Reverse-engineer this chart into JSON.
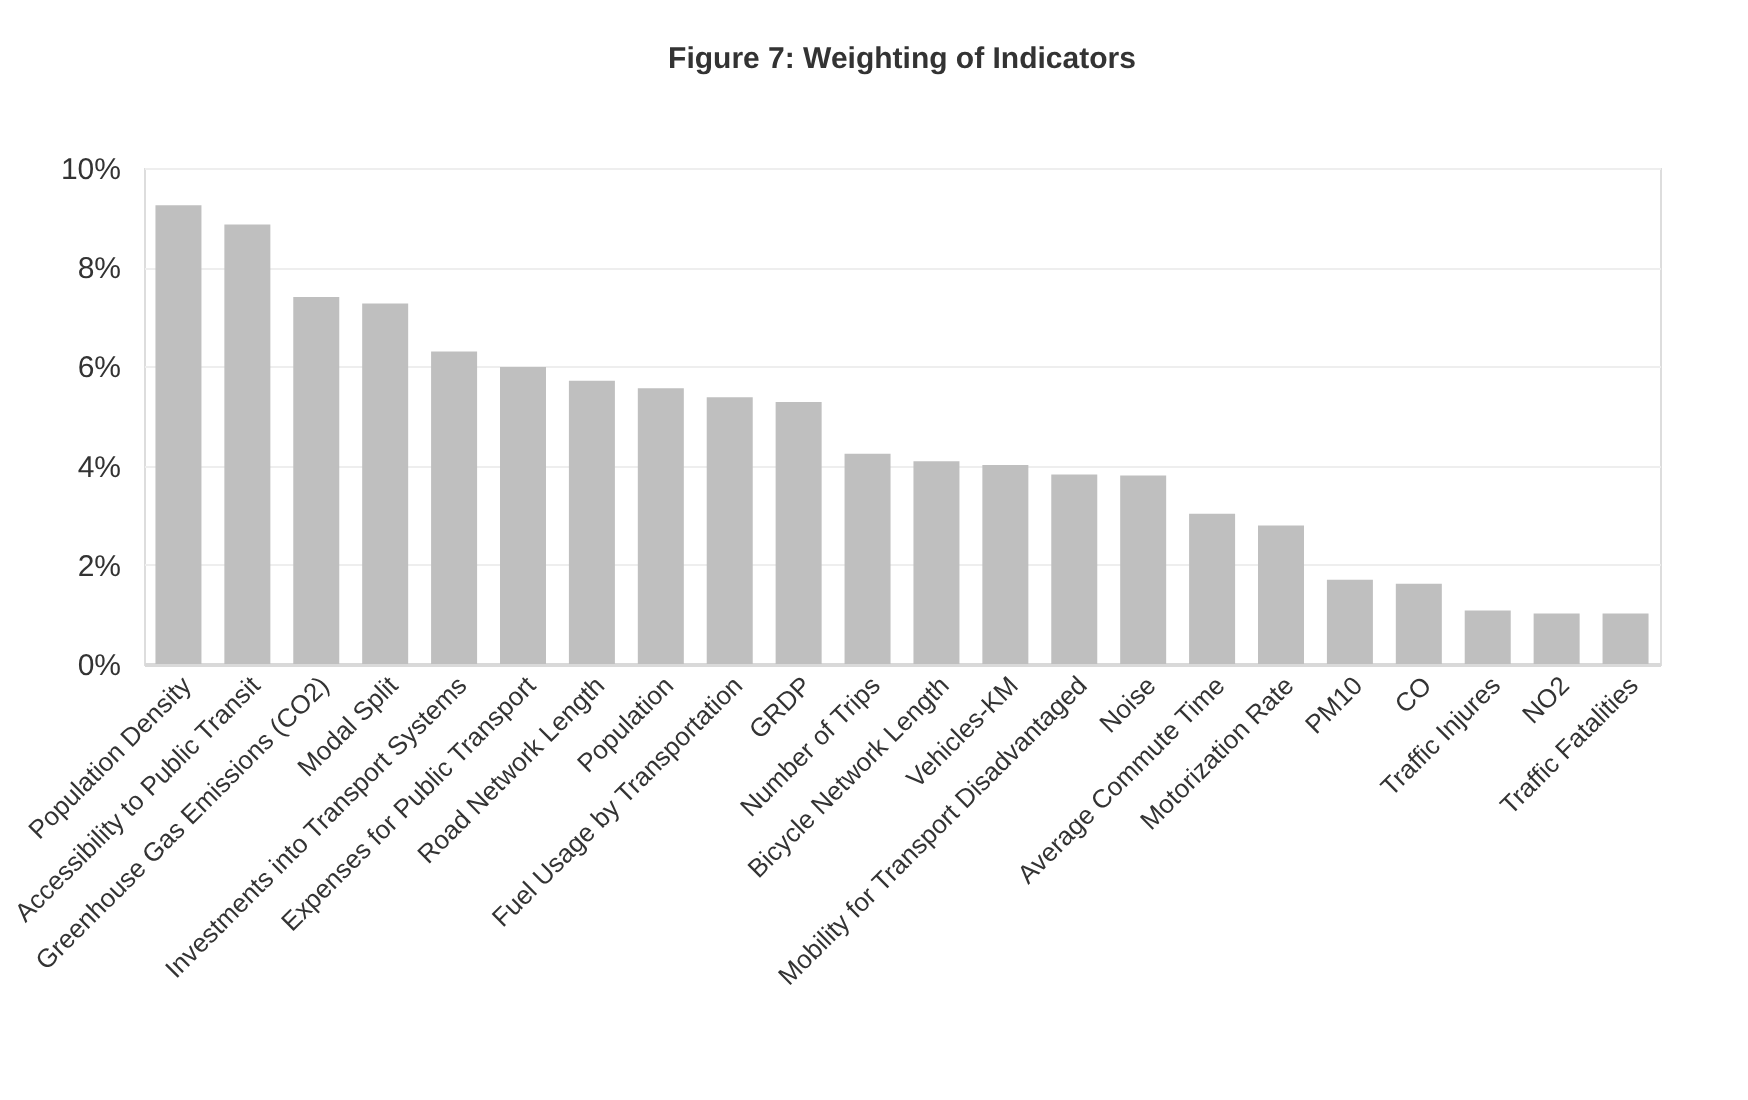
{
  "chart_data": {
    "type": "bar",
    "title": "Figure 7: Weighting of Indicators",
    "categories": [
      "Population Density",
      "Accessibility to Public Transit",
      "Greenhouse Gas Emissions (CO2)",
      "Modal Split",
      "Investments into Transport Systems",
      "Expenses for Public Transport",
      "Road Network Length",
      "Population",
      "Fuel Usage by Transportation",
      "GRDP",
      "Number of Trips",
      "Bicycle Network Length",
      "Vehicles-KM",
      "Mobility for Transport Disadvantaged",
      "Noise",
      "Average Commute Time",
      "Motorization Rate",
      "PM10",
      "CO",
      "Traffic Injures",
      "NO2",
      "Traffic Fatalities"
    ],
    "values": [
      9.25,
      8.86,
      7.4,
      7.27,
      6.3,
      5.99,
      5.71,
      5.56,
      5.38,
      5.28,
      4.24,
      4.09,
      4.01,
      3.82,
      3.8,
      3.03,
      2.79,
      1.7,
      1.62,
      1.08,
      1.02,
      1.02
    ],
    "color": "#bfbfbf",
    "ylim": [
      0,
      10
    ],
    "yticks": [
      {
        "value": 0,
        "label": "0%"
      },
      {
        "value": 2,
        "label": "2%"
      },
      {
        "value": 4,
        "label": "4%"
      },
      {
        "value": 6,
        "label": "6%"
      },
      {
        "value": 8,
        "label": "8%"
      },
      {
        "value": 10,
        "label": "10%"
      }
    ],
    "grid": "y"
  }
}
